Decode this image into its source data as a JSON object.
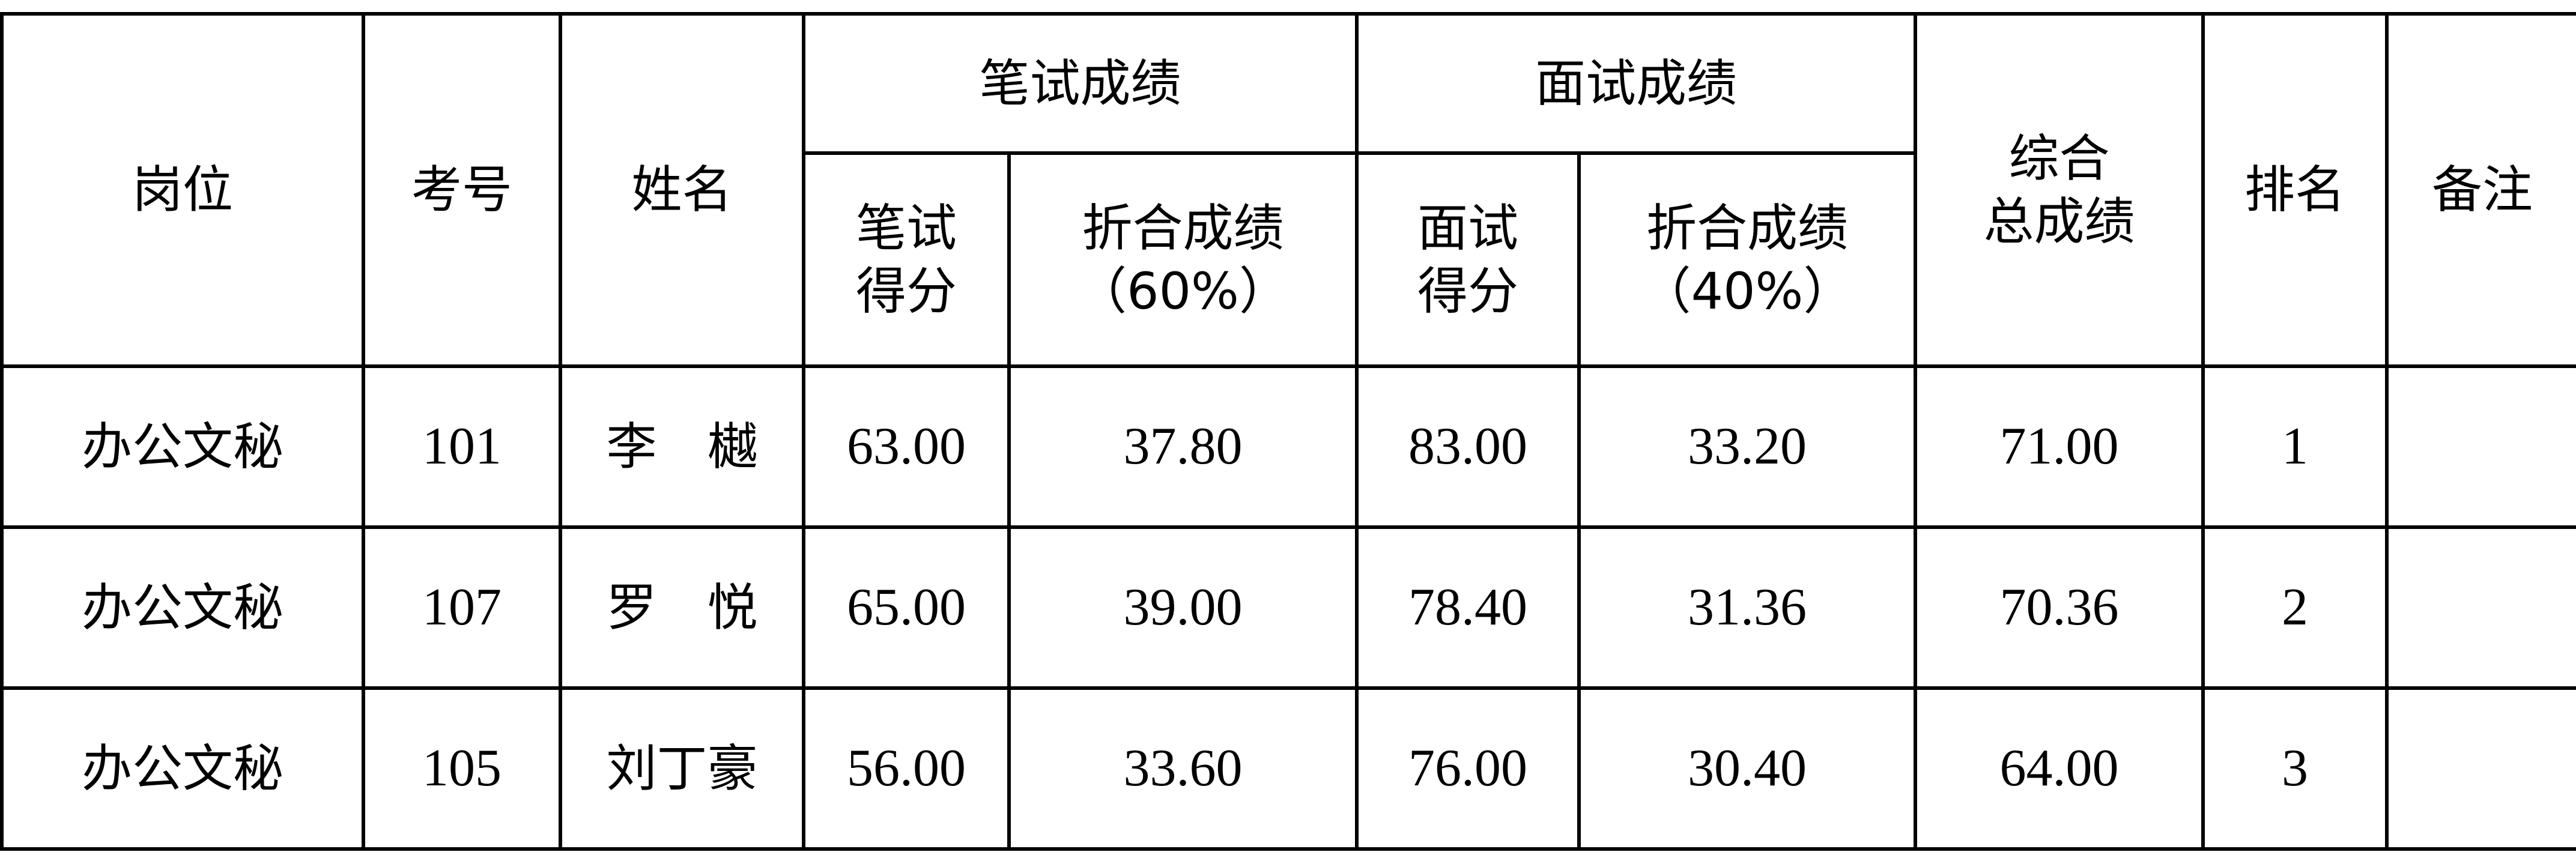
{
  "headers": {
    "post": "岗位",
    "exam_no": "考号",
    "name": "姓名",
    "written_group": "笔试成绩",
    "written_score": [
      "笔试",
      "得分"
    ],
    "written_weighted": [
      "折合成绩",
      "（60%）"
    ],
    "interview_group": "面试成绩",
    "interview_score": [
      "面试",
      "得分"
    ],
    "interview_weighted": [
      "折合成绩",
      "（40%）"
    ],
    "total": [
      "综合",
      "总成绩"
    ],
    "rank": "排名",
    "remark": "备注"
  },
  "rows": [
    {
      "post": "办公文秘",
      "exam_no": "101",
      "name": "李　樾",
      "written_score": "63.00",
      "written_weighted": "37.80",
      "interview_score": "83.00",
      "interview_weighted": "33.20",
      "total": "71.00",
      "rank": "1",
      "remark": ""
    },
    {
      "post": "办公文秘",
      "exam_no": "107",
      "name": "罗　悦",
      "written_score": "65.00",
      "written_weighted": "39.00",
      "interview_score": "78.40",
      "interview_weighted": "31.36",
      "total": "70.36",
      "rank": "2",
      "remark": ""
    },
    {
      "post": "办公文秘",
      "exam_no": "105",
      "name": "刘丁豪",
      "written_score": "56.00",
      "written_weighted": "33.60",
      "interview_score": "76.00",
      "interview_weighted": "30.40",
      "total": "64.00",
      "rank": "3",
      "remark": ""
    }
  ]
}
